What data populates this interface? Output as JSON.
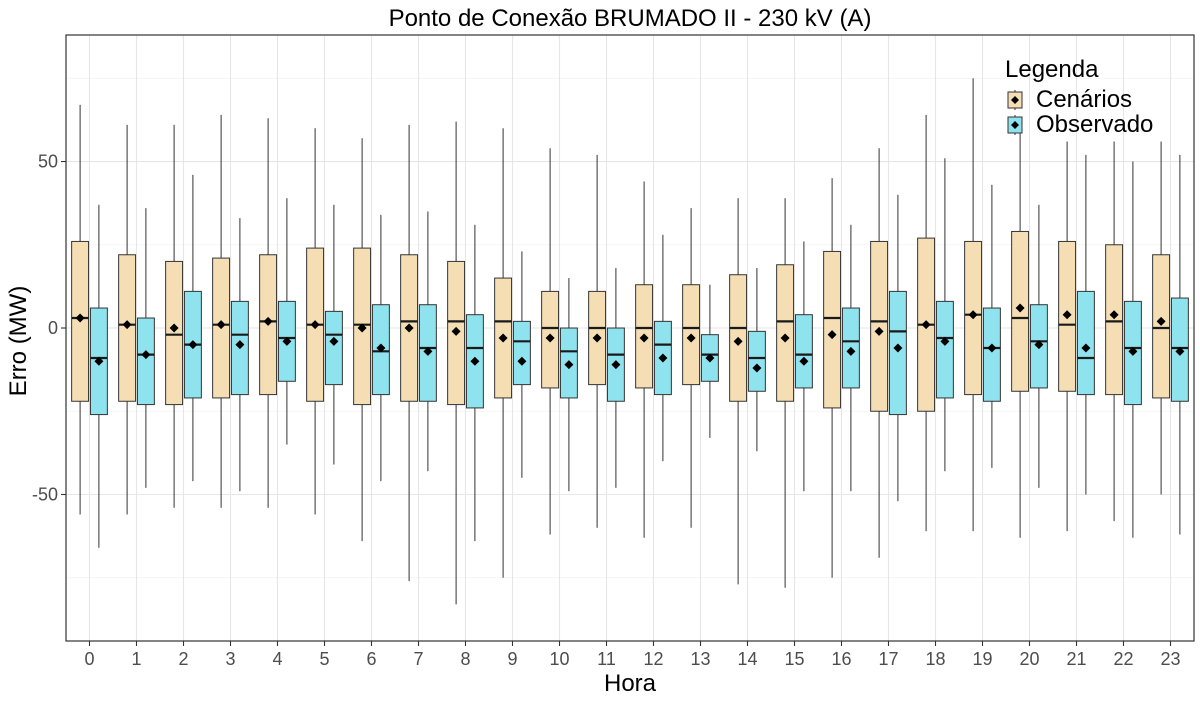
{
  "chart_data": {
    "type": "boxplot",
    "title": "Ponto de Conexão BRUMADO II - 230 kV (A)",
    "xlabel": "Hora",
    "ylabel": "Erro (MW)",
    "categories": [
      "0",
      "1",
      "2",
      "3",
      "4",
      "5",
      "6",
      "7",
      "8",
      "9",
      "10",
      "11",
      "12",
      "13",
      "14",
      "15",
      "16",
      "17",
      "18",
      "19",
      "20",
      "21",
      "22",
      "23"
    ],
    "ylim": [
      -94,
      88
    ],
    "yticks": [
      -50,
      0,
      50
    ],
    "grid": true,
    "legend": {
      "title": "Legenda",
      "placement": "top-right"
    },
    "series": [
      {
        "name": "Cenários",
        "color": "#f5deb3",
        "boxes": [
          {
            "min": -56,
            "q1": -22,
            "median": 3,
            "q3": 26,
            "max": 67,
            "mean": 3
          },
          {
            "min": -56,
            "q1": -22,
            "median": 1,
            "q3": 22,
            "max": 61,
            "mean": 1
          },
          {
            "min": -54,
            "q1": -23,
            "median": -2,
            "q3": 20,
            "max": 61,
            "mean": 0
          },
          {
            "min": -54,
            "q1": -21,
            "median": 1,
            "q3": 21,
            "max": 64,
            "mean": 1
          },
          {
            "min": -54,
            "q1": -20,
            "median": 2,
            "q3": 22,
            "max": 63,
            "mean": 2
          },
          {
            "min": -56,
            "q1": -22,
            "median": 1,
            "q3": 24,
            "max": 60,
            "mean": 1
          },
          {
            "min": -64,
            "q1": -23,
            "median": 1,
            "q3": 24,
            "max": 57,
            "mean": 0
          },
          {
            "min": -76,
            "q1": -22,
            "median": 2,
            "q3": 22,
            "max": 61,
            "mean": 0
          },
          {
            "min": -83,
            "q1": -23,
            "median": 2,
            "q3": 20,
            "max": 62,
            "mean": -1
          },
          {
            "min": -75,
            "q1": -21,
            "median": 2,
            "q3": 15,
            "max": 60,
            "mean": -3
          },
          {
            "min": -62,
            "q1": -18,
            "median": 0,
            "q3": 11,
            "max": 54,
            "mean": -3
          },
          {
            "min": -60,
            "q1": -17,
            "median": 0,
            "q3": 11,
            "max": 52,
            "mean": -3
          },
          {
            "min": -63,
            "q1": -18,
            "median": 0,
            "q3": 13,
            "max": 44,
            "mean": -3
          },
          {
            "min": -60,
            "q1": -17,
            "median": 0,
            "q3": 13,
            "max": 36,
            "mean": -3
          },
          {
            "min": -77,
            "q1": -22,
            "median": 0,
            "q3": 16,
            "max": 39,
            "mean": -4
          },
          {
            "min": -78,
            "q1": -22,
            "median": 2,
            "q3": 19,
            "max": 39,
            "mean": -3
          },
          {
            "min": -75,
            "q1": -24,
            "median": 3,
            "q3": 23,
            "max": 45,
            "mean": -2
          },
          {
            "min": -69,
            "q1": -25,
            "median": 2,
            "q3": 26,
            "max": 54,
            "mean": -1
          },
          {
            "min": -61,
            "q1": -25,
            "median": 1,
            "q3": 27,
            "max": 64,
            "mean": 1
          },
          {
            "min": -61,
            "q1": -20,
            "median": 4,
            "q3": 26,
            "max": 75,
            "mean": 4
          },
          {
            "min": -63,
            "q1": -19,
            "median": 3,
            "q3": 29,
            "max": 62,
            "mean": 6
          },
          {
            "min": -61,
            "q1": -19,
            "median": 1,
            "q3": 26,
            "max": 56,
            "mean": 4
          },
          {
            "min": -58,
            "q1": -20,
            "median": 2,
            "q3": 25,
            "max": 56,
            "mean": 4
          },
          {
            "min": -50,
            "q1": -21,
            "median": 0,
            "q3": 22,
            "max": 56,
            "mean": 2
          }
        ]
      },
      {
        "name": "Observado",
        "color": "#8fe3ef",
        "boxes": [
          {
            "min": -66,
            "q1": -26,
            "median": -9,
            "q3": 6,
            "max": 37,
            "mean": -10
          },
          {
            "min": -48,
            "q1": -23,
            "median": -8,
            "q3": 3,
            "max": 36,
            "mean": -8
          },
          {
            "min": -46,
            "q1": -21,
            "median": -5,
            "q3": 11,
            "max": 46,
            "mean": -5
          },
          {
            "min": -49,
            "q1": -20,
            "median": -2,
            "q3": 8,
            "max": 33,
            "mean": -5
          },
          {
            "min": -35,
            "q1": -16,
            "median": -3,
            "q3": 8,
            "max": 39,
            "mean": -4
          },
          {
            "min": -41,
            "q1": -17,
            "median": -2,
            "q3": 5,
            "max": 37,
            "mean": -4
          },
          {
            "min": -46,
            "q1": -20,
            "median": -7,
            "q3": 7,
            "max": 34,
            "mean": -6
          },
          {
            "min": -43,
            "q1": -22,
            "median": -6,
            "q3": 7,
            "max": 35,
            "mean": -7
          },
          {
            "min": -64,
            "q1": -24,
            "median": -6,
            "q3": 4,
            "max": 31,
            "mean": -10
          },
          {
            "min": -45,
            "q1": -17,
            "median": -4,
            "q3": 2,
            "max": 23,
            "mean": -10
          },
          {
            "min": -49,
            "q1": -21,
            "median": -7,
            "q3": 0,
            "max": 15,
            "mean": -11
          },
          {
            "min": -48,
            "q1": -22,
            "median": -8,
            "q3": 0,
            "max": 18,
            "mean": -11
          },
          {
            "min": -40,
            "q1": -20,
            "median": -5,
            "q3": 2,
            "max": 28,
            "mean": -9
          },
          {
            "min": -33,
            "q1": -16,
            "median": -8,
            "q3": -2,
            "max": 13,
            "mean": -9
          },
          {
            "min": -37,
            "q1": -19,
            "median": -9,
            "q3": -1,
            "max": 18,
            "mean": -12
          },
          {
            "min": -49,
            "q1": -18,
            "median": -8,
            "q3": 4,
            "max": 26,
            "mean": -10
          },
          {
            "min": -49,
            "q1": -18,
            "median": -4,
            "q3": 6,
            "max": 31,
            "mean": -7
          },
          {
            "min": -52,
            "q1": -26,
            "median": -1,
            "q3": 11,
            "max": 40,
            "mean": -6
          },
          {
            "min": -43,
            "q1": -21,
            "median": -3,
            "q3": 8,
            "max": 51,
            "mean": -4
          },
          {
            "min": -42,
            "q1": -22,
            "median": -6,
            "q3": 6,
            "max": 43,
            "mean": -6
          },
          {
            "min": -48,
            "q1": -18,
            "median": -4,
            "q3": 7,
            "max": 37,
            "mean": -5
          },
          {
            "min": -50,
            "q1": -20,
            "median": -9,
            "q3": 11,
            "max": 52,
            "mean": -6
          },
          {
            "min": -63,
            "q1": -23,
            "median": -6,
            "q3": 8,
            "max": 50,
            "mean": -7
          },
          {
            "min": -62,
            "q1": -22,
            "median": -6,
            "q3": 9,
            "max": 52,
            "mean": -7
          }
        ]
      }
    ]
  }
}
